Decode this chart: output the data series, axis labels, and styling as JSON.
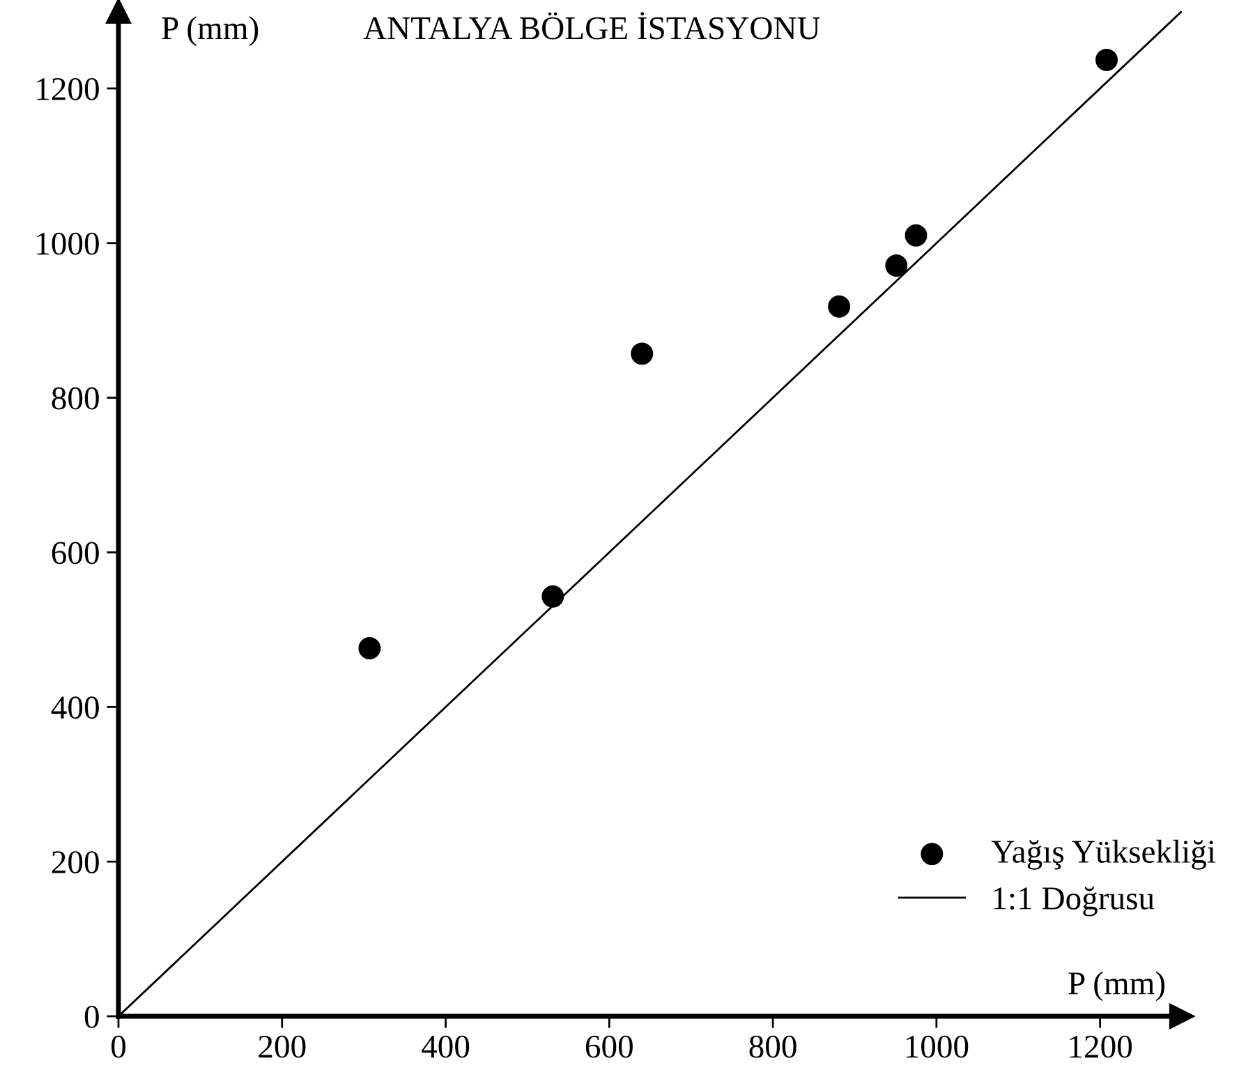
{
  "chart_data": {
    "type": "scatter",
    "title": "ANTALYA BÖLGE İSTASYONU",
    "xlabel": "P (mm)",
    "ylabel": "P (mm)",
    "xlim": [
      0,
      1300
    ],
    "ylim": [
      0,
      1300
    ],
    "xticks": [
      0,
      200,
      400,
      600,
      800,
      1000,
      1200
    ],
    "yticks": [
      0,
      200,
      400,
      600,
      800,
      1000,
      1200
    ],
    "grid": false,
    "legend": "bottom right",
    "series": [
      {
        "name": "Yağış Yüksekliği",
        "color": "#000000",
        "marker": "circle",
        "x": [
          307,
          531,
          640,
          881,
          951,
          975,
          1208
        ],
        "values": [
          476,
          543,
          857,
          918,
          971,
          1010,
          1237
        ]
      },
      {
        "name": "1:1 Doğrusu",
        "type": "line",
        "color": "#000000",
        "line_style": "solid",
        "x": [
          0,
          1300
        ],
        "values": [
          0,
          1300
        ]
      }
    ]
  }
}
